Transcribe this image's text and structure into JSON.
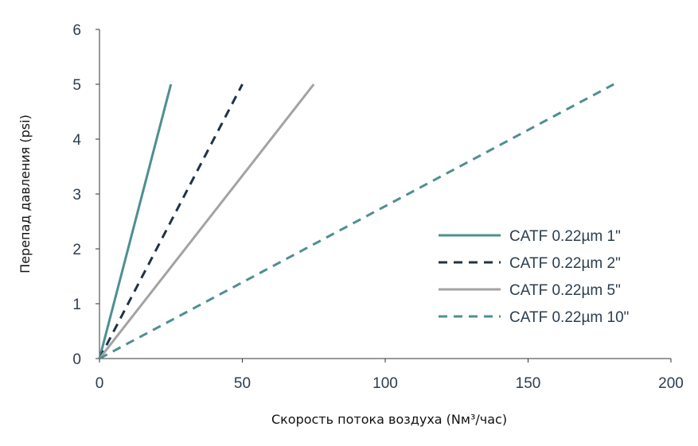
{
  "chart_data": {
    "type": "line",
    "title": "",
    "xlabel": "Скорость потока воздуха (Nм³/час)",
    "ylabel": "Перепад давления (psi)",
    "xlim": [
      0,
      200
    ],
    "ylim": [
      0,
      6
    ],
    "xticks": [
      "0",
      "50",
      "100",
      "150",
      "200"
    ],
    "yticks": [
      "0",
      "1",
      "2",
      "3",
      "4",
      "5",
      "6"
    ],
    "grid": false,
    "legend": "center-right",
    "series": [
      {
        "name": "CATF 0.22µm 1\"",
        "x": [
          0,
          25
        ],
        "y": [
          0,
          5
        ],
        "color": "#4e8f91",
        "dash": "solid"
      },
      {
        "name": "CATF 0.22µm 2\"",
        "x": [
          0,
          50
        ],
        "y": [
          0,
          5
        ],
        "color": "#1f3347",
        "dash": "dashed"
      },
      {
        "name": "CATF 0.22µm 5\"",
        "x": [
          0,
          75
        ],
        "y": [
          0,
          5
        ],
        "color": "#a3a3a3",
        "dash": "solid"
      },
      {
        "name": "CATF 0.22µm 10\"",
        "x": [
          0,
          180
        ],
        "y": [
          0,
          5
        ],
        "color": "#4e8f91",
        "dash": "dashed"
      }
    ]
  }
}
